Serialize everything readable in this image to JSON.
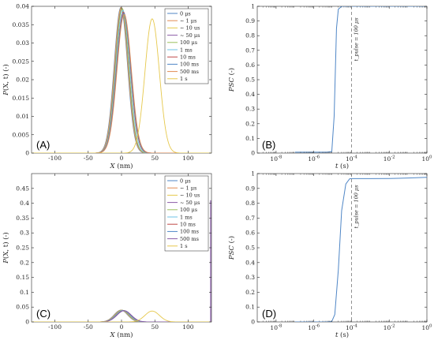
{
  "chart_data": [
    {
      "id": "A",
      "type": "line",
      "panel_label": "(A)",
      "xlabel": "X (nm)",
      "ylabel": "P(X, t) (-)",
      "xlim": [
        -135,
        135
      ],
      "ylim": [
        0,
        0.04
      ],
      "x_ticks": [
        "-100",
        "-50",
        "0",
        "50",
        "100"
      ],
      "y_ticks": [
        "0",
        "0.005",
        "0.01",
        "0.015",
        "0.02",
        "0.025",
        "0.03",
        "0.035",
        "0.04"
      ],
      "grid": false,
      "legend_position": "top-right",
      "series": [
        {
          "name": "0 μs",
          "color": "#4f86c6",
          "mu": -1,
          "sigma": 10,
          "amp": 0.0397
        },
        {
          "name": "~ 1 μs",
          "color": "#e08a52",
          "mu": -0.5,
          "sigma": 10,
          "amp": 0.0397
        },
        {
          "name": "~ 10 us",
          "color": "#e6c84c",
          "mu": 0,
          "sigma": 10,
          "amp": 0.0396
        },
        {
          "name": "~ 50 μs",
          "color": "#8a5ca8",
          "mu": 0.5,
          "sigma": 10,
          "amp": 0.0395
        },
        {
          "name": "100 μs",
          "color": "#9bc05a",
          "mu": 1,
          "sigma": 10,
          "amp": 0.0394
        },
        {
          "name": "1 ms",
          "color": "#6fc3e4",
          "mu": 2,
          "sigma": 10.3,
          "amp": 0.0389
        },
        {
          "name": "10 ms",
          "color": "#c04a48",
          "mu": 3,
          "sigma": 10.5,
          "amp": 0.0384
        },
        {
          "name": "100 ms",
          "color": "#4f86c6",
          "mu": 3.5,
          "sigma": 10.6,
          "amp": 0.0381
        },
        {
          "name": "500 ms",
          "color": "#e08a52",
          "mu": 4,
          "sigma": 10.7,
          "amp": 0.0378
        },
        {
          "name": "1 s",
          "color": "#e6c84c",
          "mu": 46,
          "sigma": 10.8,
          "amp": 0.0366
        }
      ]
    },
    {
      "id": "B",
      "type": "line",
      "panel_label": "(B)",
      "xlabel": "t (s)",
      "ylabel": "PSC (-)",
      "xscale": "log",
      "xlim": [
        1e-09,
        1
      ],
      "ylim": [
        0,
        1
      ],
      "x_ticks": [
        "10^-8",
        "10^-6",
        "10^-4",
        "10^-2",
        "10^0"
      ],
      "y_ticks": [
        "0",
        "0.1",
        "0.2",
        "0.3",
        "0.4",
        "0.5",
        "0.6",
        "0.7",
        "0.8",
        "0.9",
        "1"
      ],
      "annotation": {
        "text": "t_pulse = 100 μs",
        "x": 0.0001
      },
      "series": [
        {
          "color": "#4f86c6",
          "x": [
            1e-07,
            1e-06,
            5e-06,
            9e-06,
            1.2e-05,
            1.6e-05,
            2e-05,
            3e-05,
            0.0001,
            0.001,
            0.01,
            0.1,
            1
          ],
          "y": [
            0.006,
            0.006,
            0.006,
            0.01,
            0.25,
            0.85,
            0.98,
            1.0,
            1.0,
            1.0,
            1.0,
            1.0,
            1.0
          ]
        }
      ]
    },
    {
      "id": "C",
      "type": "line",
      "panel_label": "(C)",
      "xlabel": "X (nm)",
      "ylabel": "P(X, t) (-)",
      "xlim": [
        -135,
        135
      ],
      "ylim": [
        0,
        0.5
      ],
      "x_ticks": [
        "-100",
        "-50",
        "0",
        "50",
        "100"
      ],
      "y_ticks": [
        "0",
        "0.05",
        "0.1",
        "0.15",
        "0.2",
        "0.25",
        "0.3",
        "0.35",
        "0.4",
        "0.45"
      ],
      "legend_position": "top-right",
      "series": [
        {
          "name": "0 μs",
          "color": "#4f86c6",
          "mu": -1,
          "sigma": 10,
          "amp": 0.0397
        },
        {
          "name": "~ 1 μs",
          "color": "#e08a52",
          "mu": -0.5,
          "sigma": 10,
          "amp": 0.0397
        },
        {
          "name": "~ 10 us",
          "color": "#e6c84c",
          "mu": 0,
          "sigma": 10,
          "amp": 0.0396
        },
        {
          "name": "~ 50 μs",
          "color": "#8a5ca8",
          "mu": 0.5,
          "sigma": 10,
          "amp": 0.0395
        },
        {
          "name": "100 μs",
          "color": "#9bc05a",
          "mu": 1,
          "sigma": 10,
          "amp": 0.0394
        },
        {
          "name": "1 ms",
          "color": "#6fc3e4",
          "mu": 2,
          "sigma": 10.3,
          "amp": 0.0389
        },
        {
          "name": "10 ms",
          "color": "#c04a48",
          "mu": 3,
          "sigma": 10.5,
          "amp": 0.0384
        },
        {
          "name": "100 ms",
          "color": "#4f86c6",
          "mu": 3.5,
          "sigma": 10.6,
          "amp": 0.0381
        },
        {
          "name": "500 ms",
          "color": "#8a5ca8",
          "mu": 4,
          "sigma": 10.7,
          "amp": 0.0378
        },
        {
          "name": "1 s",
          "color": "#e6c84c",
          "mu": 46,
          "sigma": 10.8,
          "amp": 0.0366
        }
      ],
      "edge_spike": {
        "color": "#8a5ca8",
        "x": 135,
        "y": 0.41
      }
    },
    {
      "id": "D",
      "type": "line",
      "panel_label": "(D)",
      "xlabel": "t (s)",
      "ylabel": "PSC (-)",
      "xscale": "log",
      "xlim": [
        1e-09,
        1
      ],
      "ylim": [
        0,
        1
      ],
      "x_ticks": [
        "10^-8",
        "10^-6",
        "10^-4",
        "10^-2",
        "10^0"
      ],
      "y_ticks": [
        "0",
        "0.1",
        "0.2",
        "0.3",
        "0.4",
        "0.5",
        "0.6",
        "0.7",
        "0.8",
        "0.9",
        "1"
      ],
      "annotation": {
        "text": "t_pulse = 100 μs",
        "x": 0.0001
      },
      "series": [
        {
          "color": "#4f86c6",
          "x": [
            1e-07,
            1e-06,
            5e-06,
            9e-06,
            1.3e-05,
            2e-05,
            3e-05,
            5e-05,
            8e-05,
            0.0001,
            0.001,
            0.01,
            0.1,
            1
          ],
          "y": [
            0.0,
            0.0,
            0.0,
            0.003,
            0.05,
            0.35,
            0.75,
            0.93,
            0.965,
            0.966,
            0.966,
            0.967,
            0.97,
            0.975
          ]
        }
      ]
    }
  ]
}
